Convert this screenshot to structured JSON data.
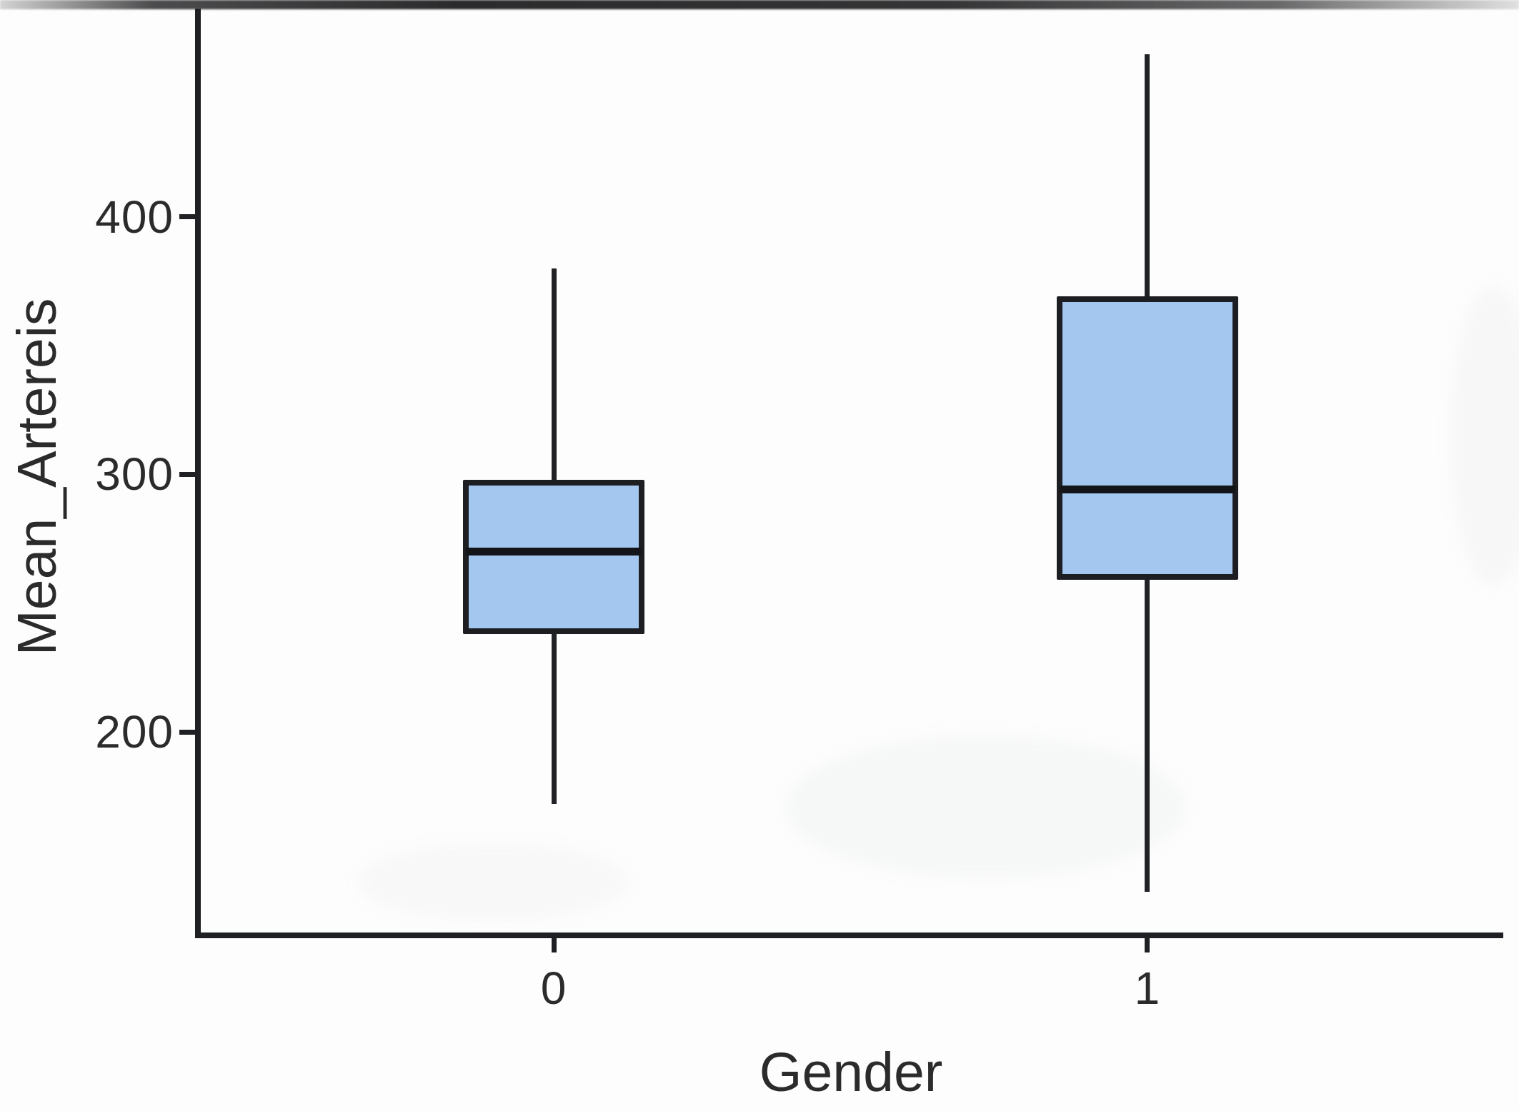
{
  "figure": {
    "background": "#fdfdfd",
    "text_color": "#2b2b2b",
    "line_color": "#1f2023"
  },
  "chart_data": {
    "type": "boxplot",
    "title": "",
    "xlabel": "Gender",
    "ylabel": "Mean_Artereis",
    "categories": [
      "0",
      "1"
    ],
    "series": [
      {
        "name": "Gender 0",
        "category": "0",
        "min": 172,
        "q1": 238,
        "median": 270,
        "q3": 298,
        "max": 380
      },
      {
        "name": "Gender 1",
        "category": "1",
        "min": 138,
        "q1": 259,
        "median": 294,
        "q3": 369,
        "max": 463
      }
    ],
    "y_ticks": [
      200,
      300,
      400
    ],
    "ylim": [
      121,
      480
    ],
    "grid": false,
    "legend": false,
    "box_fill": "#a4c7ef",
    "box_border": "#1d1e21",
    "median_color": "#131519"
  }
}
